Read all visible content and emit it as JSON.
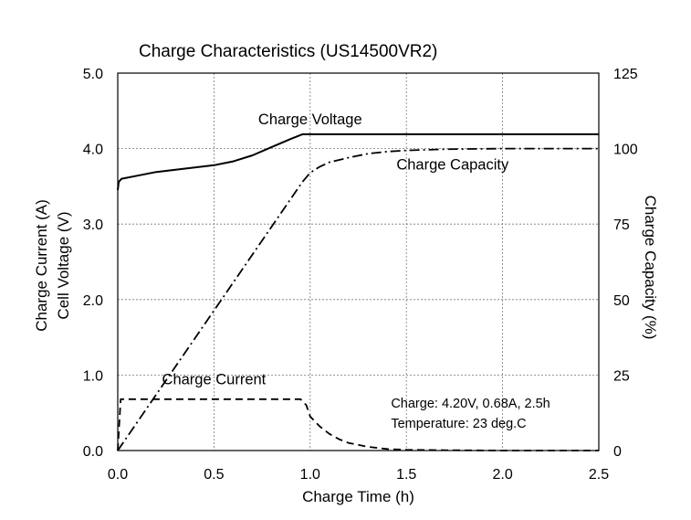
{
  "chart_data": {
    "type": "line",
    "title": "Charge Characteristics (US14500VR2)",
    "xlabel": "Charge Time (h)",
    "ylabel_left_line1": "Charge Current (A)",
    "ylabel_left_line2": "Cell Voltage (V)",
    "ylabel_right": "Charge Capacity (%)",
    "xlim": [
      0,
      2.5
    ],
    "ylim_left": [
      0,
      5
    ],
    "ylim_right": [
      0,
      125
    ],
    "x_ticks": [
      "0.0",
      "0.5",
      "1.0",
      "1.5",
      "2.0",
      "2.5"
    ],
    "y_left_ticks": [
      "0.0",
      "1.0",
      "2.0",
      "3.0",
      "4.0",
      "5.0"
    ],
    "y_right_ticks": [
      "0",
      "25",
      "50",
      "75",
      "100",
      "125"
    ],
    "grid": true,
    "series": [
      {
        "name": "Charge Voltage",
        "axis": "left",
        "style": "solid",
        "x": [
          0,
          0.005,
          0.02,
          0.1,
          0.2,
          0.3,
          0.4,
          0.5,
          0.6,
          0.7,
          0.8,
          0.9,
          0.96,
          1.0,
          1.5,
          2.0,
          2.5
        ],
        "y": [
          3.45,
          3.56,
          3.6,
          3.64,
          3.69,
          3.72,
          3.75,
          3.78,
          3.83,
          3.91,
          4.02,
          4.13,
          4.19,
          4.19,
          4.19,
          4.19,
          4.19
        ]
      },
      {
        "name": "Charge Capacity",
        "axis": "right",
        "style": "dashdot",
        "x": [
          0,
          0.96,
          1.0,
          1.05,
          1.1,
          1.2,
          1.3,
          1.4,
          1.5,
          1.7,
          2.0,
          2.5
        ],
        "y": [
          0,
          89,
          92,
          94,
          95.5,
          97,
          98.3,
          99,
          99.4,
          99.8,
          100,
          100
        ]
      },
      {
        "name": "Charge Current",
        "axis": "left",
        "style": "dashed",
        "x": [
          0,
          0.015,
          0.95,
          0.98,
          1.0,
          1.05,
          1.1,
          1.15,
          1.2,
          1.3,
          1.4,
          1.5,
          1.7,
          2.0,
          2.5
        ],
        "y": [
          0,
          0.68,
          0.68,
          0.6,
          0.45,
          0.32,
          0.22,
          0.15,
          0.1,
          0.05,
          0.02,
          0.01,
          0.005,
          0,
          0
        ]
      }
    ],
    "annotations": [
      {
        "text": "Charge Voltage",
        "x": 1.0,
        "y": 4.32,
        "axis": "left"
      },
      {
        "text": "Charge Capacity",
        "x": 1.74,
        "y": 3.72,
        "axis": "left"
      },
      {
        "text": "Charge Current",
        "x": 0.5,
        "y": 0.88,
        "axis": "left"
      },
      {
        "text": "Charge: 4.20V, 0.68A, 2.5h",
        "x": 1.42,
        "y": 0.57,
        "axis": "left"
      },
      {
        "text": "Temperature: 23 deg.C",
        "x": 1.42,
        "y": 0.3,
        "axis": "left"
      }
    ]
  }
}
